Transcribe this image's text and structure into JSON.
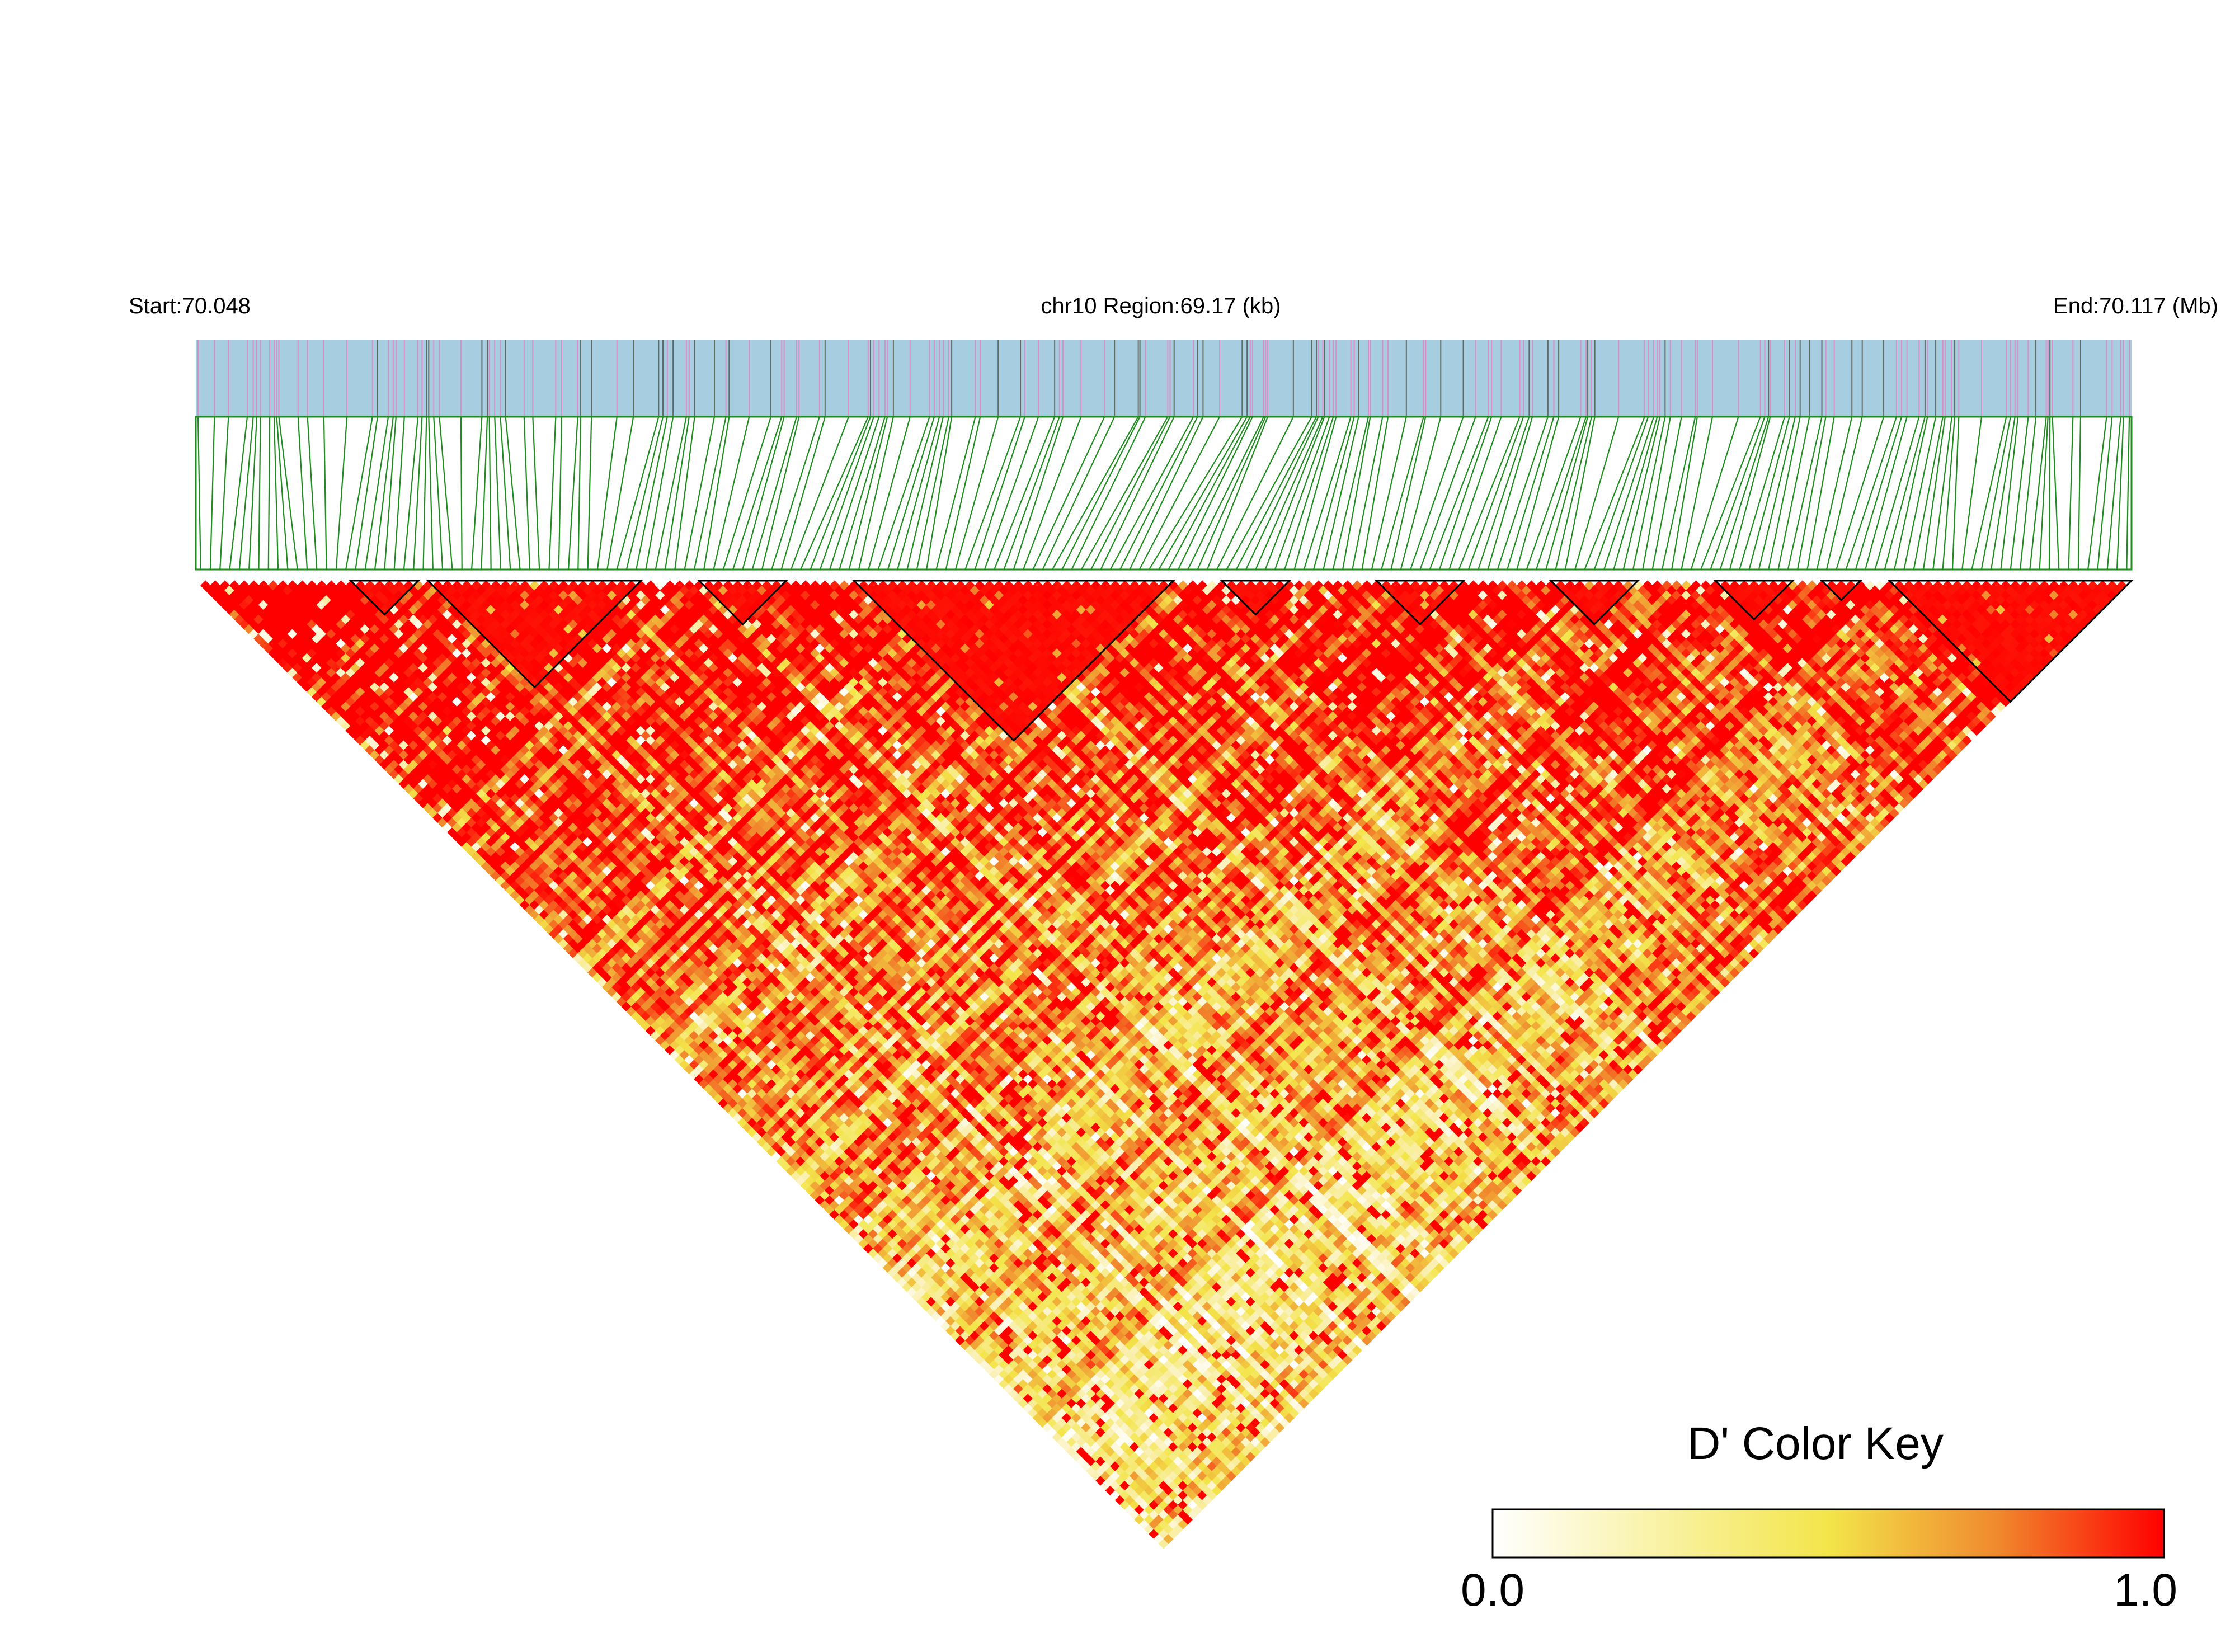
{
  "header": {
    "start_label": "Start:70.048",
    "region_label": "chr10 Region:69.17 (kb)",
    "end_label": "End:70.117 (Mb)"
  },
  "legend": {
    "title": "D' Color Key",
    "min_label": "0.0",
    "max_label": "1.0",
    "colors": [
      "#ffffff",
      "#f3e54a",
      "#f08a2e",
      "#ff0000"
    ]
  },
  "track": {
    "background_color": "#a7cde0",
    "link_color": "#1e8c1e",
    "marker_colors": [
      "#d98ec7",
      "#5f6b63"
    ]
  },
  "chart_data": {
    "type": "heatmap",
    "subtype": "linkage-disequilibrium triangle",
    "metric": "D'",
    "value_range": [
      0,
      1
    ],
    "chromosome": "chr10",
    "start_mb": 70.048,
    "end_mb": 70.117,
    "region_kb": 69.17,
    "snp_count": 200,
    "ld_blocks": [
      {
        "first_snp": 16,
        "last_snp": 22
      },
      {
        "first_snp": 24,
        "last_snp": 45
      },
      {
        "first_snp": 52,
        "last_snp": 60
      },
      {
        "first_snp": 68,
        "last_snp": 100
      },
      {
        "first_snp": 106,
        "last_snp": 112
      },
      {
        "first_snp": 122,
        "last_snp": 130
      },
      {
        "first_snp": 140,
        "last_snp": 148
      },
      {
        "first_snp": 157,
        "last_snp": 164
      },
      {
        "first_snp": 168,
        "last_snp": 171
      },
      {
        "first_snp": 175,
        "last_snp": 199
      }
    ]
  }
}
